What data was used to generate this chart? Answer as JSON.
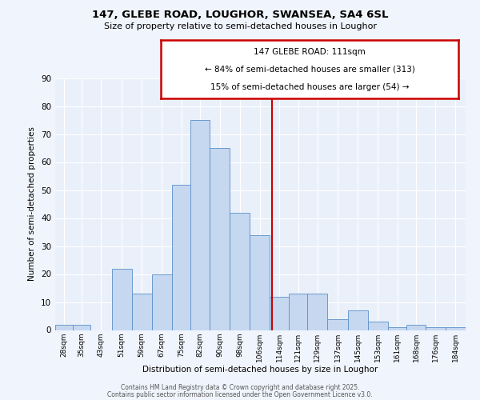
{
  "title_line1": "147, GLEBE ROAD, LOUGHOR, SWANSEA, SA4 6SL",
  "title_line2": "Size of property relative to semi-detached houses in Loughor",
  "xlabel": "Distribution of semi-detached houses by size in Loughor",
  "ylabel": "Number of semi-detached properties",
  "footer_line1": "Contains HM Land Registry data © Crown copyright and database right 2025.",
  "footer_line2": "Contains public sector information licensed under the Open Government Licence v3.0.",
  "annotation_line1": "147 GLEBE ROAD: 111sqm",
  "annotation_line2": "← 84% of semi-detached houses are smaller (313)",
  "annotation_line3": "15% of semi-detached houses are larger (54) →",
  "property_size": 111,
  "categories": [
    "28sqm",
    "35sqm",
    "43sqm",
    "51sqm",
    "59sqm",
    "67sqm",
    "75sqm",
    "82sqm",
    "90sqm",
    "98sqm",
    "106sqm",
    "114sqm",
    "121sqm",
    "129sqm",
    "137sqm",
    "145sqm",
    "153sqm",
    "161sqm",
    "168sqm",
    "176sqm",
    "184sqm"
  ],
  "values": [
    2,
    2,
    0,
    22,
    13,
    20,
    52,
    75,
    65,
    42,
    34,
    12,
    13,
    13,
    4,
    7,
    3,
    1,
    2,
    1,
    1
  ],
  "bin_edges": [
    24.5,
    31.5,
    38.5,
    47,
    55,
    63,
    71,
    78.5,
    86,
    94,
    102,
    110,
    117.5,
    125,
    133,
    141,
    149,
    157,
    164.5,
    172,
    180,
    188
  ],
  "bar_color": "#c5d8f0",
  "bar_edge_color": "#5b8fc9",
  "vline_x": 111,
  "vline_color": "#cc0000",
  "bg_color": "#eaf0fa",
  "grid_color": "#ffffff",
  "fig_bg_color": "#f0f4fc",
  "ylim": [
    0,
    90
  ],
  "yticks": [
    0,
    10,
    20,
    30,
    40,
    50,
    60,
    70,
    80,
    90
  ]
}
